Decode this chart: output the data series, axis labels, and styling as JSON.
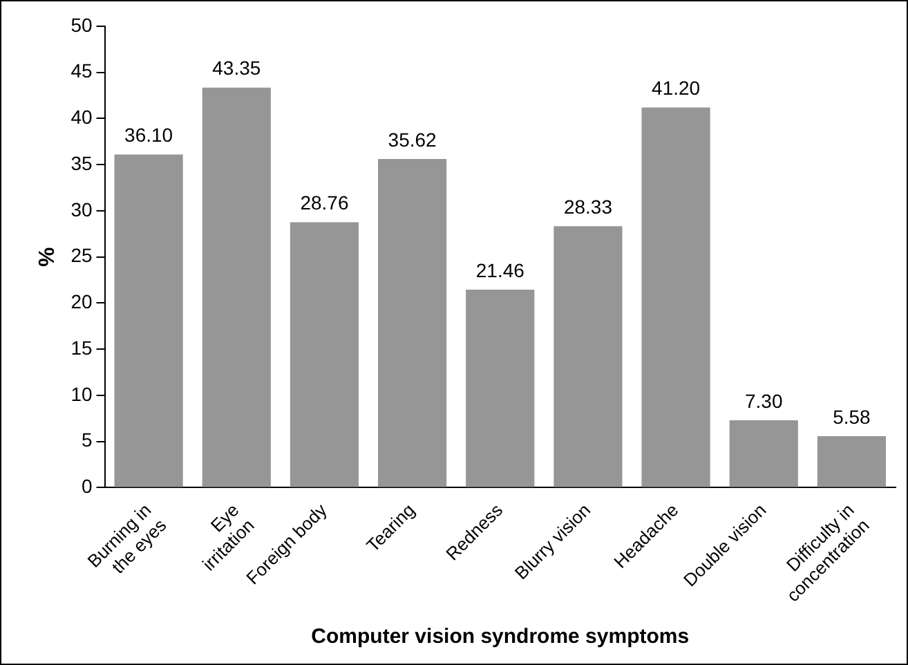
{
  "chart_data": {
    "type": "bar",
    "xlabel": "Computer vision syndrome symptoms",
    "ylabel": "%",
    "categories": [
      "Burning in the eyes",
      "Eye irritation",
      "Foreign body",
      "Tearing",
      "Redness",
      "Blurry vision",
      "Headache",
      "Double vision",
      "Difficulty in concentration"
    ],
    "values": [
      36.1,
      43.35,
      28.76,
      35.62,
      21.46,
      28.33,
      41.2,
      7.3,
      5.58
    ],
    "value_labels": [
      "36.10",
      "43.35",
      "28.76",
      "35.62",
      "21.46",
      "28.33",
      "41.20",
      "7.30",
      "5.58"
    ],
    "color": "#969696",
    "ylim": [
      0,
      50
    ],
    "yticks": [
      0,
      5,
      10,
      15,
      20,
      25,
      30,
      35,
      40,
      45,
      50
    ],
    "grid": false,
    "legend": false
  }
}
